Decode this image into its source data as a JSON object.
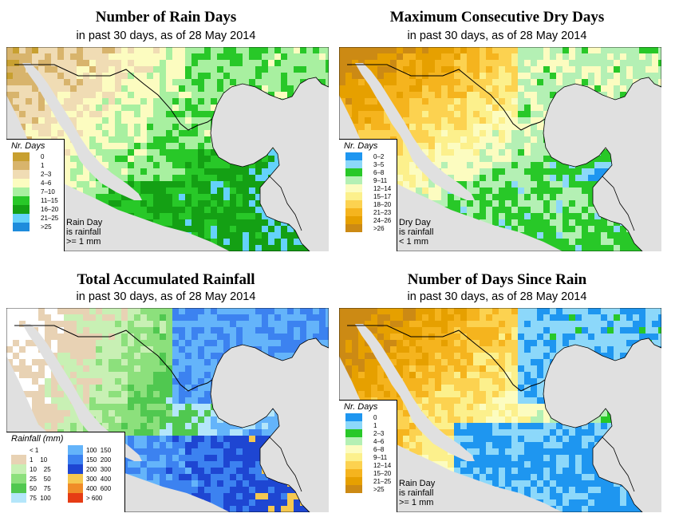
{
  "panels": {
    "rain_days": {
      "title": "Number of Rain Days",
      "subtitle": "in past 30 days, as of  28 May 2014",
      "legend_title": "Nr. Days",
      "legend": [
        {
          "label": "0",
          "color": "#c8a030"
        },
        {
          "label": "1",
          "color": "#d8b46c"
        },
        {
          "label": "2–3",
          "color": "#f0dcb4"
        },
        {
          "label": "4–6",
          "color": "#fcfcc0"
        },
        {
          "label": "7–10",
          "color": "#a8f0a0"
        },
        {
          "label": "11–15",
          "color": "#28c828"
        },
        {
          "label": "16–20",
          "color": "#14a014"
        },
        {
          "label": "21–25",
          "color": "#64d2fa"
        },
        {
          "label": ">25",
          "color": "#1e8cdc"
        }
      ],
      "note": [
        "Rain Day",
        "is rainfall",
        ">= 1 mm"
      ]
    },
    "dry_days": {
      "title": "Maximum Consecutive Dry Days",
      "subtitle": "in past 30 days, as of  28 May 2014",
      "legend_title": "Nr. Days",
      "legend": [
        {
          "label": "0–2",
          "color": "#1e96f0"
        },
        {
          "label": "3–5",
          "color": "#8cd8fa"
        },
        {
          "label": "6–8",
          "color": "#28c828"
        },
        {
          "label": "9–11",
          "color": "#b4f0b4"
        },
        {
          "label": "12–14",
          "color": "#fcfcc0"
        },
        {
          "label": "15–17",
          "color": "#fcf08c"
        },
        {
          "label": "18–20",
          "color": "#fcd250"
        },
        {
          "label": "21–23",
          "color": "#f5b41e"
        },
        {
          "label": "24–26",
          "color": "#e6a000"
        },
        {
          "label": ">26",
          "color": "#cc8a14"
        }
      ],
      "note": [
        "Dry Day",
        "is rainfall",
        "< 1 mm"
      ]
    },
    "total_rain": {
      "title": "Total Accumulated Rainfall",
      "subtitle": "in past 30 days, as of  28 May 2014",
      "legend_title": "Rainfall (mm)",
      "legend": [
        {
          "label": "< 1",
          "color": "#ffffff"
        },
        {
          "label": "100  150",
          "color": "#64b4fa"
        },
        {
          "label": "1    10",
          "color": "#e8d2b4"
        },
        {
          "label": "150  200",
          "color": "#3c82f0"
        },
        {
          "label": "10    25",
          "color": "#c8f0b4"
        },
        {
          "label": "200  300",
          "color": "#1e46d2"
        },
        {
          "label": "25    50",
          "color": "#8ce07c"
        },
        {
          "label": "300  400",
          "color": "#f5c850"
        },
        {
          "label": "50    75",
          "color": "#50c850"
        },
        {
          "label": "400  600",
          "color": "#f08c28"
        },
        {
          "label": "75  100",
          "color": "#b4e6fa"
        },
        {
          "label": "> 600",
          "color": "#e63c14"
        }
      ]
    },
    "since_rain": {
      "title": "Number of Days Since Rain",
      "subtitle": "in past 30 days, as of  28 May 2014",
      "legend_title": "Nr. Days",
      "legend": [
        {
          "label": "0",
          "color": "#1e96f0"
        },
        {
          "label": "1",
          "color": "#8cd8fa"
        },
        {
          "label": "2–3",
          "color": "#28c828"
        },
        {
          "label": "4–6",
          "color": "#b4f0b4"
        },
        {
          "label": "6–8",
          "color": "#fcfcc0"
        },
        {
          "label": "9–11",
          "color": "#fcf08c"
        },
        {
          "label": "12–14",
          "color": "#fcd250"
        },
        {
          "label": "15–20",
          "color": "#f5b41e"
        },
        {
          "label": "21–25",
          "color": "#e6a000"
        },
        {
          "label": ">25",
          "color": "#cc8a14"
        }
      ],
      "note": [
        "Rain Day",
        "is rainfall",
        ">= 1 mm"
      ]
    }
  }
}
